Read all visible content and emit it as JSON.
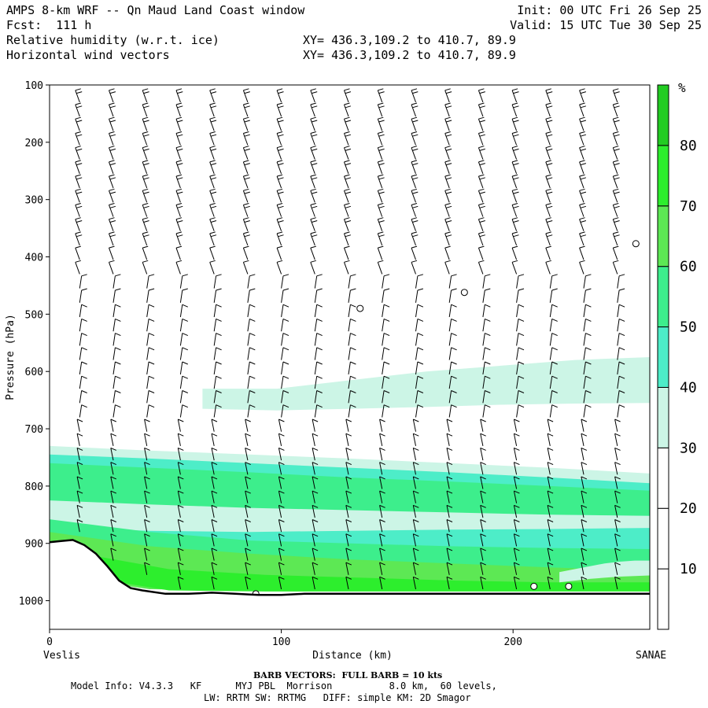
{
  "header": {
    "model": "AMPS 8-km WRF -- Qn Maud Land Coast window",
    "init": "Init: 00 UTC Fri 26 Sep 25",
    "fcst": "Fcst:  111 h",
    "valid": "Valid: 15 UTC Tue 30 Sep 25",
    "field1": "Relative humidity (w.r.t. ice)",
    "xy1": "XY= 436.3,109.2 to 410.7, 89.9",
    "field2": "Horizontal wind vectors",
    "xy2": "XY= 436.3,109.2 to 410.7, 89.9"
  },
  "footer": {
    "barb_note": "BARB VECTORS:  FULL BARB = 10 kts",
    "model_info_1": "Model Info: V4.3.3   KF      MYJ PBL  Morrison          8.0 km,  60 levels,",
    "model_info_2": "LW: RRTM SW: RRTMG   DIFF: simple KM: 2D Smagor"
  },
  "chart_data": {
    "type": "heatmap",
    "title": "Relative humidity (w.r.t. ice) cross-section with horizontal wind barbs",
    "xlabel": "Distance (km)",
    "ylabel": "Pressure (hPa)",
    "xlim": [
      0,
      259
    ],
    "ylim": [
      1050,
      100
    ],
    "x_ticks": [
      "0",
      "100",
      "200"
    ],
    "x_tick_values": [
      0,
      100,
      200
    ],
    "y_ticks": [
      "100",
      "200",
      "300",
      "400",
      "500",
      "600",
      "700",
      "800",
      "900",
      "1000"
    ],
    "y_tick_values": [
      100,
      200,
      300,
      400,
      500,
      600,
      700,
      800,
      900,
      1000
    ],
    "start_label": "Veslis",
    "end_label": "SANAE",
    "colorbar": {
      "unit": "%",
      "tick_labels": [
        "10",
        "20",
        "30",
        "40",
        "50",
        "60",
        "70",
        "80"
      ],
      "tick_values": [
        10,
        20,
        30,
        40,
        50,
        60,
        70,
        80
      ],
      "levels": [
        0,
        10,
        20,
        30,
        40,
        50,
        60,
        70,
        80,
        90
      ],
      "colors": [
        "#ffffff",
        "#ffffff",
        "#ffffff",
        "#ccf5e6",
        "#4dedc8",
        "#3dee8c",
        "#5de854",
        "#2dee2d",
        "#22cc22"
      ]
    },
    "terrain": [
      [
        0,
        898
      ],
      [
        5,
        896
      ],
      [
        10,
        894
      ],
      [
        15,
        903
      ],
      [
        20,
        918
      ],
      [
        25,
        940
      ],
      [
        30,
        965
      ],
      [
        35,
        978
      ],
      [
        40,
        982
      ],
      [
        50,
        988
      ],
      [
        60,
        988
      ],
      [
        70,
        986
      ],
      [
        80,
        988
      ],
      [
        90,
        990
      ],
      [
        100,
        990
      ],
      [
        110,
        988
      ],
      [
        130,
        988
      ],
      [
        160,
        988
      ],
      [
        200,
        988
      ],
      [
        259,
        988
      ]
    ],
    "rh_bands": [
      {
        "value": 35,
        "x": [
          66,
          259
        ],
        "top": [
          630,
          630,
          615,
          600,
          590,
          580,
          575
        ],
        "bot": [
          665,
          668,
          665,
          662,
          658,
          656,
          655
        ]
      },
      {
        "value": 35,
        "x": [
          0,
          259
        ],
        "top": [
          730,
          738,
          745,
          752,
          760,
          768,
          778
        ],
        "bot": [
          960,
          975,
          975,
          975,
          975,
          975,
          975
        ]
      },
      {
        "value": 45,
        "x": [
          0,
          259
        ],
        "top": [
          745,
          752,
          760,
          768,
          776,
          785,
          795
        ],
        "bot": [
          955,
          975,
          975,
          975,
          975,
          975,
          975
        ]
      },
      {
        "value": 55,
        "x": [
          0,
          259
        ],
        "top": [
          760,
          768,
          776,
          785,
          792,
          800,
          808
        ],
        "bot": [
          832,
          836,
          840,
          845,
          848,
          850,
          852
        ]
      },
      {
        "value": 35,
        "x": [
          0,
          259
        ],
        "top": [
          825,
          832,
          838,
          842,
          846,
          850,
          852
        ],
        "bot": [
          872,
          878,
          880,
          878,
          876,
          875,
          873
        ]
      },
      {
        "value": 55,
        "x": [
          0,
          259
        ],
        "top": [
          858,
          880,
          895,
          900,
          905,
          908,
          910
        ],
        "bot": [
          955,
          978,
          978,
          978,
          978,
          978,
          978
        ]
      },
      {
        "value": 65,
        "x": [
          0,
          259
        ],
        "top": [
          880,
          905,
          918,
          928,
          935,
          942,
          948
        ],
        "bot": [
          955,
          980,
          982,
          982,
          982,
          982,
          982
        ]
      },
      {
        "value": 75,
        "x": [
          10,
          259
        ],
        "top": [
          915,
          945,
          955,
          960,
          965,
          968,
          968
        ],
        "bot": [
          955,
          982,
          984,
          984,
          984,
          984,
          984
        ]
      },
      {
        "value": 35,
        "x": [
          220,
          259
        ],
        "top": [
          950,
          945,
          940,
          935,
          932,
          930,
          930
        ],
        "bot": [
          968,
          965,
          962,
          960,
          958,
          957,
          956
        ]
      }
    ],
    "calm_points": [
      {
        "x": 134,
        "p": 490
      },
      {
        "x": 179,
        "p": 462
      },
      {
        "x": 253,
        "p": 377
      },
      {
        "x": 89,
        "p": 988
      },
      {
        "x": 209,
        "p": 975
      },
      {
        "x": 224,
        "p": 975
      }
    ]
  }
}
